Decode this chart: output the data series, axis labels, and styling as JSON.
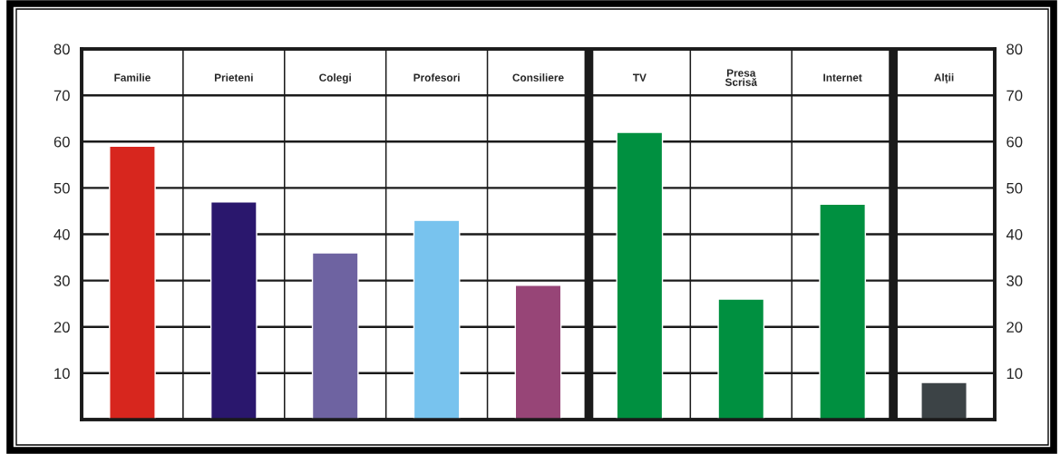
{
  "chart_data": {
    "type": "bar",
    "categories": [
      "Familie",
      "Prieteni",
      "Colegi",
      "Profesori",
      "Consiliere",
      "TV",
      "Presa\nScrisă",
      "Internet",
      "Alții"
    ],
    "values": [
      59,
      47,
      36,
      43,
      29,
      62,
      26,
      46.5,
      8
    ],
    "colors": [
      "#d7261e",
      "#2a176d",
      "#6e63a1",
      "#78c3ee",
      "#974577",
      "#009040",
      "#009040",
      "#009040",
      "#3c4346"
    ],
    "ylim": [
      0,
      80
    ],
    "yticks": [
      10,
      20,
      30,
      40,
      50,
      60,
      70,
      80
    ],
    "y2lim": [
      0,
      80
    ],
    "y2ticks": [
      10,
      20,
      30,
      40,
      50,
      60,
      70,
      80
    ],
    "grid": true
  }
}
